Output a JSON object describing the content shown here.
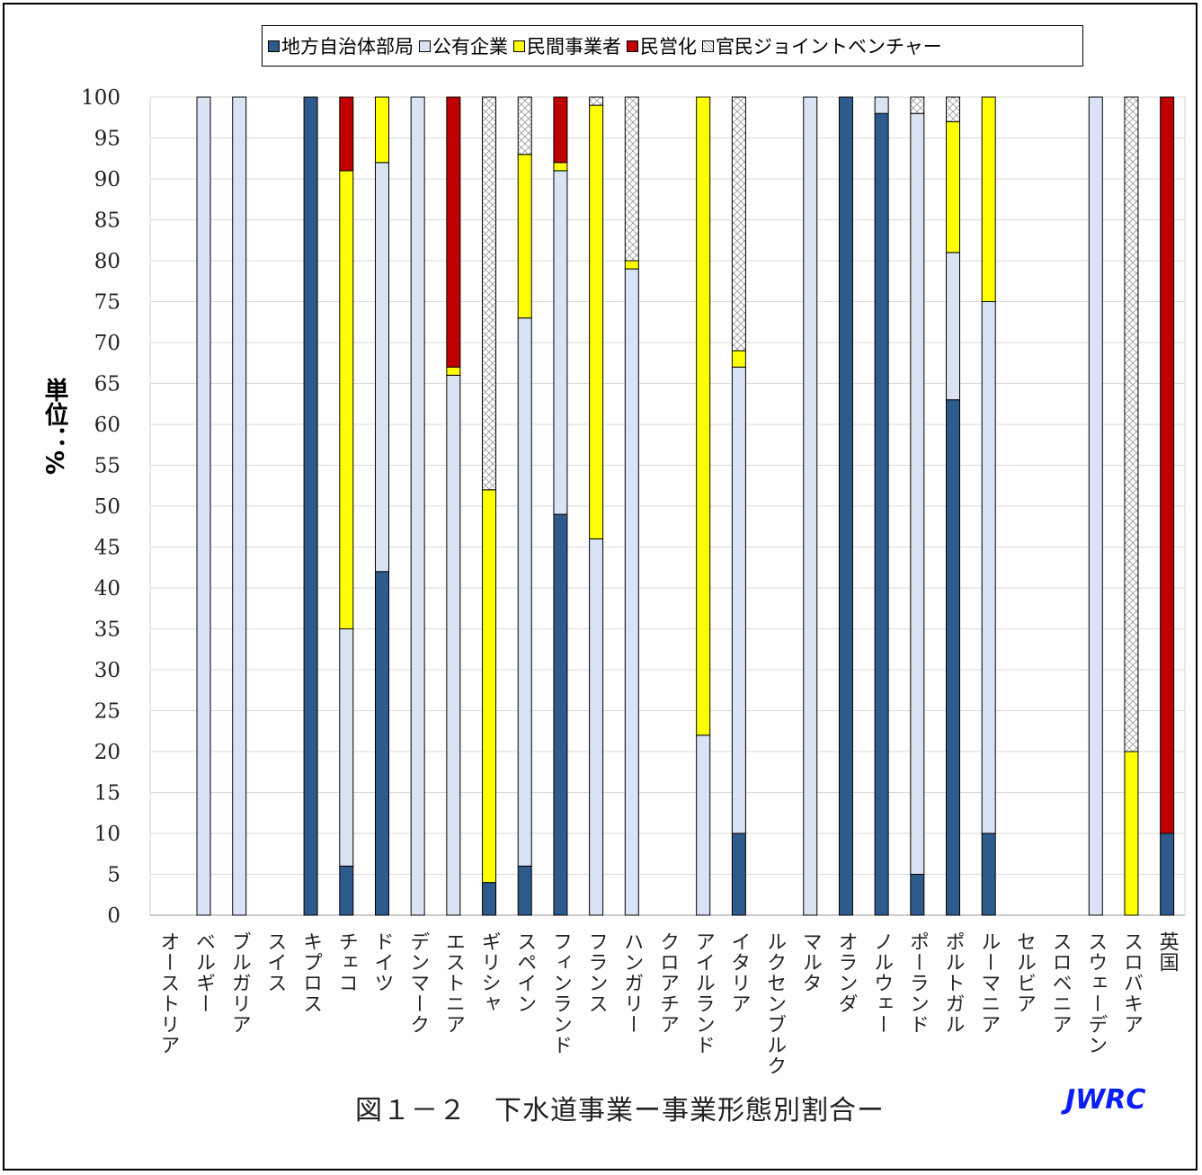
{
  "legend": [
    {
      "label": "地方自治体部局",
      "color": "#2e5a8c"
    },
    {
      "label": "公有企業",
      "color": "#dae3f3"
    },
    {
      "label": "民間事業者",
      "color": "#ffff00"
    },
    {
      "label": "民営化",
      "color": "#c00000"
    },
    {
      "label": "官民ジョイントベンチャー",
      "color": "#ffffff"
    }
  ],
  "ylabel_text": "単位：%",
  "caption": "図１－２　下水道事業ー事業形態別割合ー",
  "logo": "JWRC",
  "chart_data": {
    "type": "bar",
    "stacked": true,
    "ylim": [
      0,
      100
    ],
    "ytick_step": 5,
    "grid": true,
    "legend_position": "top",
    "categories": [
      "オーストリア",
      "ベルギー",
      "ブルガリア",
      "スイス",
      "キプロス",
      "チェコ",
      "ドイツ",
      "デンマーク",
      "エストニア",
      "ギリシャ",
      "スペイン",
      "フィンランド",
      "フランス",
      "ハンガリー",
      "クロアチア",
      "アイルランド",
      "イタリア",
      "ルクセンブルク",
      "マルタ",
      "オランダ",
      "ノルウェー",
      "ポーランド",
      "ポルトガル",
      "ルーマニア",
      "セルビア",
      "スロベニア",
      "スウェーデン",
      "スロバキア",
      "英国"
    ],
    "series": [
      {
        "name": "地方自治体部局",
        "color": "#2e5a8c",
        "values": [
          0,
          0,
          0,
          0,
          100,
          6,
          42,
          0,
          0,
          4,
          6,
          49,
          0,
          0,
          0,
          0,
          10,
          0,
          0,
          100,
          98,
          5,
          63,
          10,
          0,
          0,
          0,
          0,
          10
        ]
      },
      {
        "name": "公有企業",
        "color": "#dae3f3",
        "values": [
          0,
          100,
          100,
          0,
          0,
          29,
          50,
          100,
          66,
          0,
          67,
          42,
          46,
          79,
          0,
          22,
          57,
          0,
          100,
          0,
          2,
          93,
          18,
          65,
          0,
          0,
          100,
          0,
          0
        ]
      },
      {
        "name": "民間事業者",
        "color": "#ffff00",
        "values": [
          0,
          0,
          0,
          0,
          0,
          56,
          8,
          0,
          1,
          48,
          20,
          1,
          53,
          1,
          0,
          78,
          2,
          0,
          0,
          0,
          0,
          0,
          16,
          25,
          0,
          0,
          0,
          20,
          0
        ]
      },
      {
        "name": "民営化",
        "color": "#c00000",
        "values": [
          0,
          0,
          0,
          0,
          0,
          9,
          0,
          0,
          33,
          0,
          0,
          8,
          0,
          0,
          0,
          0,
          0,
          0,
          0,
          0,
          0,
          0,
          0,
          0,
          0,
          0,
          0,
          0,
          90
        ]
      },
      {
        "name": "官民ジョイントベンチャー",
        "color": "#ffffff",
        "pattern": "crosshatch",
        "values": [
          0,
          0,
          0,
          0,
          0,
          0,
          0,
          0,
          0,
          48,
          7,
          0,
          1,
          20,
          0,
          0,
          31,
          0,
          0,
          0,
          0,
          2,
          3,
          0,
          0,
          0,
          0,
          80,
          0
        ]
      }
    ]
  }
}
